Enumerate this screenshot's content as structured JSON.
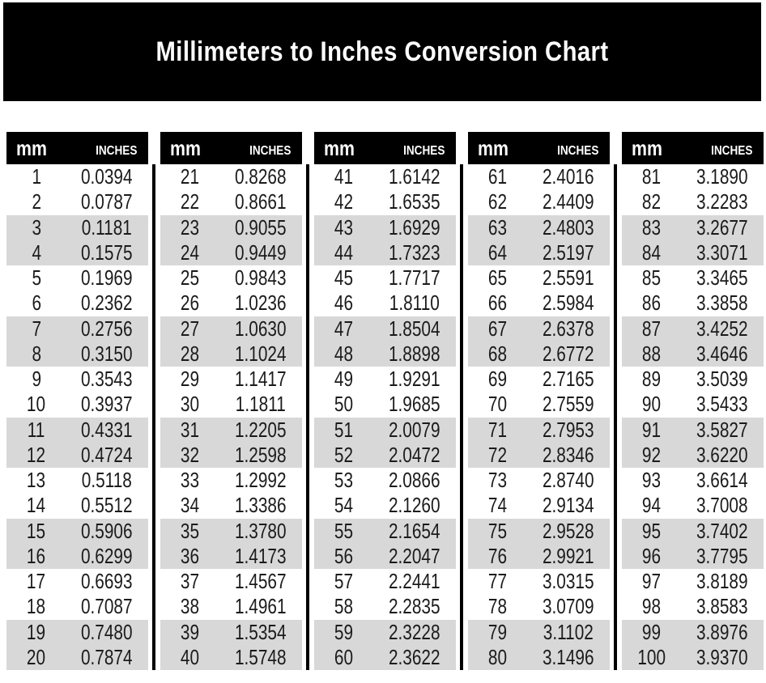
{
  "title": "Millimeters to Inches Conversion Chart",
  "colors": {
    "banner_bg": "#000000",
    "header_bg": "#000000",
    "header_text": "#ffffff",
    "row_shaded": "#d8d8d8",
    "row_plain": "#ffffff",
    "value_text": "#1b1b1b",
    "divider": "#000000"
  },
  "chart_data": {
    "type": "table",
    "title": "Millimeters to Inches Conversion Chart",
    "column_headers": [
      "mm",
      "Inches"
    ],
    "shading_pattern": "rows paired: two white rows then two gray rows, repeating",
    "column_groups": [
      {
        "rows": [
          [
            "1",
            "0.0394"
          ],
          [
            "2",
            "0.0787"
          ],
          [
            "3",
            "0.1181"
          ],
          [
            "4",
            "0.1575"
          ],
          [
            "5",
            "0.1969"
          ],
          [
            "6",
            "0.2362"
          ],
          [
            "7",
            "0.2756"
          ],
          [
            "8",
            "0.3150"
          ],
          [
            "9",
            "0.3543"
          ],
          [
            "10",
            "0.3937"
          ],
          [
            "11",
            "0.4331"
          ],
          [
            "12",
            "0.4724"
          ],
          [
            "13",
            "0.5118"
          ],
          [
            "14",
            "0.5512"
          ],
          [
            "15",
            "0.5906"
          ],
          [
            "16",
            "0.6299"
          ],
          [
            "17",
            "0.6693"
          ],
          [
            "18",
            "0.7087"
          ],
          [
            "19",
            "0.7480"
          ],
          [
            "20",
            "0.7874"
          ]
        ]
      },
      {
        "rows": [
          [
            "21",
            "0.8268"
          ],
          [
            "22",
            "0.8661"
          ],
          [
            "23",
            "0.9055"
          ],
          [
            "24",
            "0.9449"
          ],
          [
            "25",
            "0.9843"
          ],
          [
            "26",
            "1.0236"
          ],
          [
            "27",
            "1.0630"
          ],
          [
            "28",
            "1.1024"
          ],
          [
            "29",
            "1.1417"
          ],
          [
            "30",
            "1.1811"
          ],
          [
            "31",
            "1.2205"
          ],
          [
            "32",
            "1.2598"
          ],
          [
            "33",
            "1.2992"
          ],
          [
            "34",
            "1.3386"
          ],
          [
            "35",
            "1.3780"
          ],
          [
            "36",
            "1.4173"
          ],
          [
            "37",
            "1.4567"
          ],
          [
            "38",
            "1.4961"
          ],
          [
            "39",
            "1.5354"
          ],
          [
            "40",
            "1.5748"
          ]
        ]
      },
      {
        "rows": [
          [
            "41",
            "1.6142"
          ],
          [
            "42",
            "1.6535"
          ],
          [
            "43",
            "1.6929"
          ],
          [
            "44",
            "1.7323"
          ],
          [
            "45",
            "1.7717"
          ],
          [
            "46",
            "1.8110"
          ],
          [
            "47",
            "1.8504"
          ],
          [
            "48",
            "1.8898"
          ],
          [
            "49",
            "1.9291"
          ],
          [
            "50",
            "1.9685"
          ],
          [
            "51",
            "2.0079"
          ],
          [
            "52",
            "2.0472"
          ],
          [
            "53",
            "2.0866"
          ],
          [
            "54",
            "2.1260"
          ],
          [
            "55",
            "2.1654"
          ],
          [
            "56",
            "2.2047"
          ],
          [
            "57",
            "2.2441"
          ],
          [
            "58",
            "2.2835"
          ],
          [
            "59",
            "2.3228"
          ],
          [
            "60",
            "2.3622"
          ]
        ]
      },
      {
        "rows": [
          [
            "61",
            "2.4016"
          ],
          [
            "62",
            "2.4409"
          ],
          [
            "63",
            "2.4803"
          ],
          [
            "64",
            "2.5197"
          ],
          [
            "65",
            "2.5591"
          ],
          [
            "66",
            "2.5984"
          ],
          [
            "67",
            "2.6378"
          ],
          [
            "68",
            "2.6772"
          ],
          [
            "69",
            "2.7165"
          ],
          [
            "70",
            "2.7559"
          ],
          [
            "71",
            "2.7953"
          ],
          [
            "72",
            "2.8346"
          ],
          [
            "73",
            "2.8740"
          ],
          [
            "74",
            "2.9134"
          ],
          [
            "75",
            "2.9528"
          ],
          [
            "76",
            "2.9921"
          ],
          [
            "77",
            "3.0315"
          ],
          [
            "78",
            "3.0709"
          ],
          [
            "79",
            "3.1102"
          ],
          [
            "80",
            "3.1496"
          ]
        ]
      },
      {
        "rows": [
          [
            "81",
            "3.1890"
          ],
          [
            "82",
            "3.2283"
          ],
          [
            "83",
            "3.2677"
          ],
          [
            "84",
            "3.3071"
          ],
          [
            "85",
            "3.3465"
          ],
          [
            "86",
            "3.3858"
          ],
          [
            "87",
            "3.4252"
          ],
          [
            "88",
            "3.4646"
          ],
          [
            "89",
            "3.5039"
          ],
          [
            "90",
            "3.5433"
          ],
          [
            "91",
            "3.5827"
          ],
          [
            "92",
            "3.6220"
          ],
          [
            "93",
            "3.6614"
          ],
          [
            "94",
            "3.7008"
          ],
          [
            "95",
            "3.7402"
          ],
          [
            "96",
            "3.7795"
          ],
          [
            "97",
            "3.8189"
          ],
          [
            "98",
            "3.8583"
          ],
          [
            "99",
            "3.8976"
          ],
          [
            "100",
            "3.9370"
          ]
        ]
      }
    ]
  }
}
